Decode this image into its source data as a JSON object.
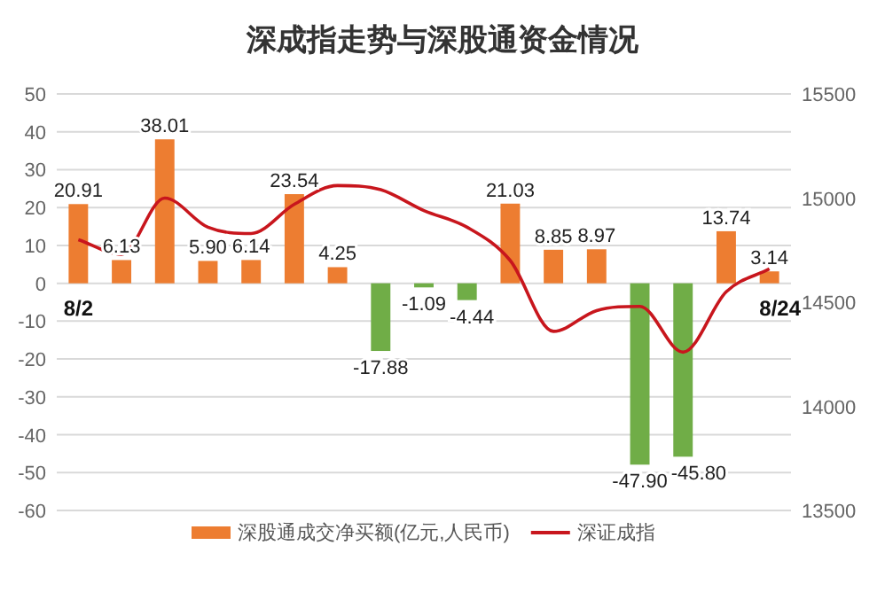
{
  "chart_data": {
    "type": "bar",
    "title": "深成指走势与深股通资金情况",
    "categories": [
      "8/2",
      null,
      null,
      null,
      null,
      null,
      null,
      null,
      null,
      null,
      null,
      null,
      null,
      null,
      null,
      null,
      "8/24"
    ],
    "series": [
      {
        "name": "深股通成交净买额(亿元,人民币)",
        "color": "#ed7d31",
        "colors": [
          "#ed7d31",
          "#ed7d31",
          "#ed7d31",
          "#ed7d31",
          "#ed7d31",
          "#ed7d31",
          "#ed7d31",
          "#70ad47",
          "#70ad47",
          "#70ad47",
          "#ed7d31",
          "#ed7d31",
          "#ed7d31",
          "#70ad47",
          "#70ad47",
          "#ed7d31",
          "#ed7d31"
        ],
        "values": [
          20.91,
          6.13,
          38.01,
          5.9,
          6.14,
          23.54,
          4.25,
          -17.88,
          -1.09,
          -4.44,
          21.03,
          8.85,
          8.97,
          -47.9,
          -45.8,
          13.74,
          3.14
        ],
        "value_labels": [
          "20.91",
          "6.13",
          "38.01",
          "5.90",
          "6.14",
          "23.54",
          "4.25",
          "-17.88",
          "-1.09",
          "-4.44",
          "21.03",
          "8.85",
          "8.97",
          "-47.90",
          "-45.80",
          "13.74",
          "3.14"
        ]
      },
      {
        "name": "深证成指",
        "type": "line",
        "axis": "y2",
        "color": "#c8161d",
        "values": [
          14800,
          14730,
          15000,
          14860,
          14830,
          14970,
          15060,
          15040,
          14940,
          14860,
          14700,
          14360,
          14460,
          14480,
          14260,
          14550,
          14660
        ]
      }
    ],
    "ylim": [
      -60,
      50
    ],
    "yticks": [
      -60,
      -50,
      -40,
      -30,
      -20,
      -10,
      0,
      10,
      20,
      30,
      40,
      50
    ],
    "y2lim": [
      13500,
      15500
    ],
    "y2ticks": [
      13500,
      14000,
      14500,
      15000,
      15500
    ],
    "grid": "y",
    "legend": "bottom",
    "marker": "none",
    "line_style": "solid"
  }
}
